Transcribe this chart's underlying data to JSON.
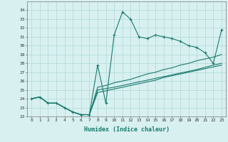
{
  "xlabel": "Humidex (Indice chaleur)",
  "x_values": [
    0,
    1,
    2,
    3,
    4,
    5,
    6,
    7,
    8,
    9,
    10,
    11,
    12,
    13,
    14,
    15,
    16,
    17,
    18,
    19,
    20,
    21,
    22,
    23
  ],
  "main_line": [
    24.0,
    24.2,
    23.5,
    23.5,
    23.0,
    22.5,
    22.2,
    22.2,
    27.8,
    23.5,
    31.2,
    33.8,
    33.0,
    31.0,
    30.8,
    31.2,
    31.0,
    30.8,
    30.5,
    30.0,
    29.8,
    29.2,
    28.0,
    31.8
  ],
  "line2": [
    24.0,
    24.2,
    23.5,
    23.5,
    23.0,
    22.5,
    22.2,
    22.2,
    25.3,
    25.5,
    25.8,
    26.0,
    26.2,
    26.5,
    26.8,
    27.0,
    27.3,
    27.5,
    27.8,
    28.0,
    28.3,
    28.5,
    28.7,
    29.0
  ],
  "line3": [
    24.0,
    24.2,
    23.5,
    23.5,
    23.0,
    22.5,
    22.2,
    22.2,
    25.0,
    25.15,
    25.3,
    25.5,
    25.7,
    25.9,
    26.1,
    26.3,
    26.5,
    26.7,
    26.9,
    27.1,
    27.3,
    27.55,
    27.8,
    28.0
  ],
  "line4": [
    24.0,
    24.2,
    23.5,
    23.5,
    23.0,
    22.5,
    22.2,
    22.2,
    24.7,
    24.9,
    25.1,
    25.3,
    25.5,
    25.7,
    25.9,
    26.1,
    26.4,
    26.6,
    26.8,
    27.0,
    27.2,
    27.4,
    27.6,
    27.8
  ],
  "line_color": "#1a7a6e",
  "bg_color": "#d8f0f0",
  "grid_color": "#b0d8d8",
  "ylim": [
    22,
    35
  ],
  "xlim": [
    -0.5,
    23.5
  ],
  "yticks": [
    22,
    23,
    24,
    25,
    26,
    27,
    28,
    29,
    30,
    31,
    32,
    33,
    34
  ],
  "xticks": [
    0,
    1,
    2,
    3,
    4,
    5,
    6,
    7,
    8,
    9,
    10,
    11,
    12,
    13,
    14,
    15,
    16,
    17,
    18,
    19,
    20,
    21,
    22,
    23
  ]
}
